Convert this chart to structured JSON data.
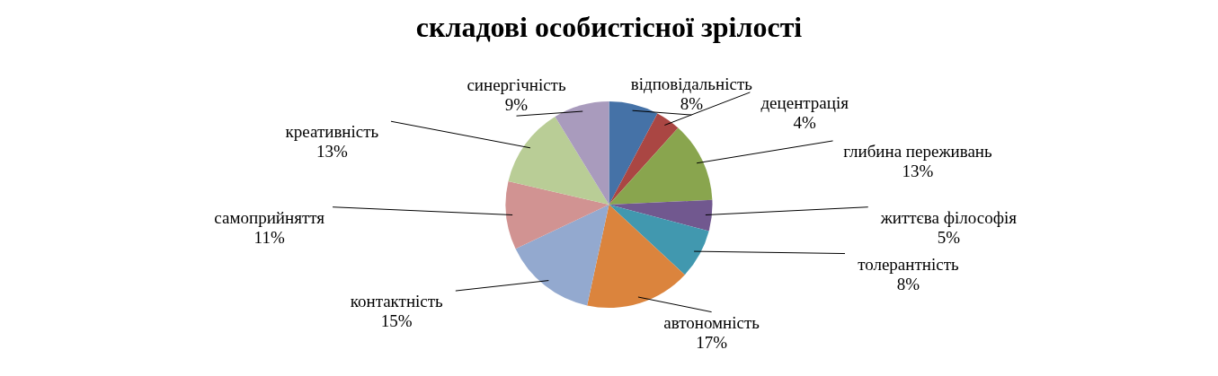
{
  "chart_data": {
    "type": "pie",
    "title": "складові особистісної зрілості",
    "categories": [
      "відповідальність",
      "децентрація",
      "глибина переживань",
      "життєва філософія",
      "толерантність",
      "автономність",
      "контактність",
      "самоприйняття",
      "креативність",
      "синергічність"
    ],
    "values": [
      8,
      4,
      13,
      5,
      8,
      17,
      15,
      11,
      13,
      9
    ],
    "colors": [
      "#4572a7",
      "#aa4643",
      "#89a54e",
      "#71588f",
      "#4198af",
      "#db843d",
      "#93a9cf",
      "#d19392",
      "#b9cd96",
      "#a99bbd"
    ],
    "value_labels": [
      "8%",
      "4%",
      "13%",
      "5%",
      "8%",
      "17%",
      "15%",
      "11%",
      "13%",
      "9%"
    ],
    "legend": false
  }
}
